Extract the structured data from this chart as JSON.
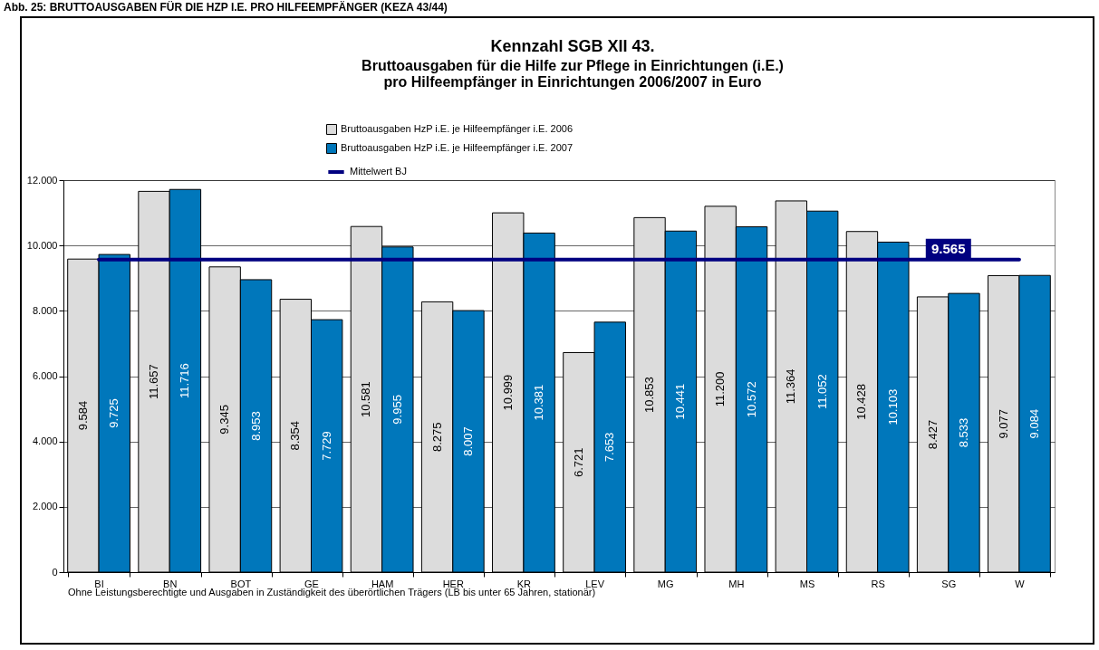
{
  "chart_data": {
    "type": "bar",
    "title": "Kennzahl SGB XII 43.",
    "subtitle": "Bruttoausgaben für die Hilfe zur Pflege in Einrichtungen (i.E.)\npro Hilfeempfänger in Einrichtungen 2006/2007 in Euro",
    "annotations": [
      "Abb. 25: BRUTTOAUSGABEN FÜR DIE HZP I.E. PRO HILFEEMPFÄNGER (KEZA 43/44)",
      "Ohne Leistungsberechtigte und Ausgaben in Zuständigkeit des überörtlichen Trägers (LB bis unter 65 Jahren, stationär)"
    ],
    "categories": [
      "BI",
      "BN",
      "BOT",
      "GE",
      "HAM",
      "HER",
      "KR",
      "LEV",
      "MG",
      "MH",
      "MS",
      "RS",
      "SG",
      "W"
    ],
    "series": [
      {
        "name": "Bruttoausgaben HzP i.E. je Hilfeempfänger i.E. 2006",
        "color": "#dcdcdc",
        "values": [
          9584,
          11657,
          9345,
          8354,
          10581,
          8275,
          10999,
          6721,
          10853,
          11200,
          11364,
          10428,
          8427,
          9077
        ],
        "value_labels": [
          "9.584",
          "11.657",
          "9.345",
          "8.354",
          "10.581",
          "8.275",
          "10.999",
          "6.721",
          "10.853",
          "11.200",
          "11.364",
          "10.428",
          "8.427",
          "9.077"
        ]
      },
      {
        "name": "Bruttoausgaben HzP i.E. je Hilfeempfänger i.E. 2007",
        "color": "#0077bb",
        "values": [
          9725,
          11716,
          8953,
          7729,
          9955,
          8007,
          10381,
          7653,
          10441,
          10572,
          11052,
          10103,
          8533,
          9084
        ],
        "value_labels": [
          "9.725",
          "11.716",
          "8.953",
          "7.729",
          "9.955",
          "8.007",
          "10.381",
          "7.653",
          "10.441",
          "10.572",
          "11.052",
          "10.103",
          "8.533",
          "9.084"
        ]
      },
      {
        "name": "Mittelwert BJ",
        "type": "line",
        "color": "#000080",
        "values": [
          9565,
          9565,
          9565,
          9565,
          9565,
          9565,
          9565,
          9565,
          9565,
          9565,
          9565,
          9565,
          9565,
          9565
        ],
        "value_labels": [
          null,
          null,
          null,
          null,
          null,
          null,
          null,
          null,
          null,
          null,
          null,
          null,
          "9.565",
          null
        ]
      }
    ],
    "ylim": [
      0,
      12000
    ],
    "yticks": [
      0,
      {
        "value": 2000,
        "label": "2.000"
      },
      {
        "value": 4000,
        "label": "4.000"
      },
      {
        "value": 6000,
        "label": "6.000"
      },
      {
        "value": 8000,
        "label": "8.000"
      },
      {
        "value": 10000,
        "label": "10.000"
      },
      {
        "value": 12000,
        "label": "12.000"
      }
    ],
    "grid": "y",
    "legend": "top"
  }
}
